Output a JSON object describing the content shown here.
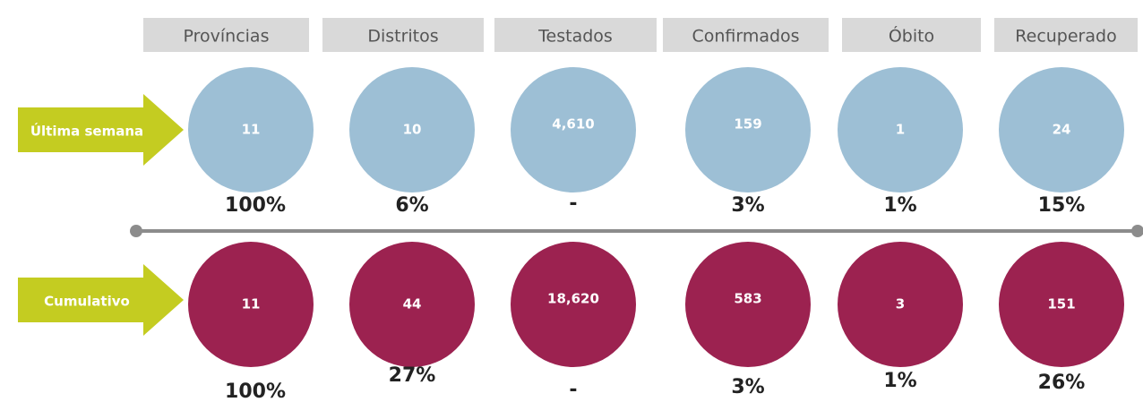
{
  "columns": [
    "Províncias",
    "Distritos",
    "Testados",
    "Confirmados",
    "Óbito",
    "Recuperado"
  ],
  "rows": [
    {
      "label": "Última semana",
      "values": [
        "11",
        "10",
        "4,610",
        "159",
        "1",
        "24"
      ],
      "percents": [
        "100%",
        "6%",
        "-",
        "3%",
        "1%",
        "15%"
      ]
    },
    {
      "label": "Cumulativo",
      "values": [
        "11",
        "44",
        "18,620",
        "583",
        "3",
        "151"
      ],
      "percents": [
        "100%",
        "27%",
        "-",
        "3%",
        "1%",
        "26%"
      ]
    }
  ]
}
